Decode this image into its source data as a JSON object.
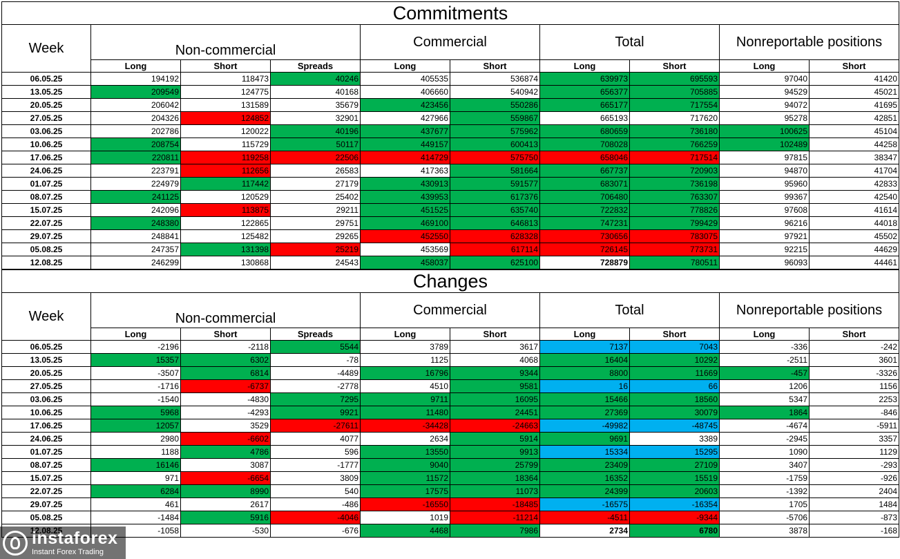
{
  "sections": [
    {
      "title": "Commitments",
      "week_label": "Week",
      "groups": [
        "Non-commercial",
        "Commercial",
        "Total",
        "Nonreportable positions"
      ],
      "subheaders": [
        "Long",
        "Short",
        "Spreads",
        "Long",
        "Short",
        "Long",
        "Short",
        "Long",
        "Short"
      ],
      "rows": [
        {
          "week": "06.05.25",
          "values": [
            "194192",
            "118473",
            "40246",
            "405535",
            "536874",
            "639973",
            "695593",
            "97040",
            "41420"
          ]
        },
        {
          "week": "13.05.25",
          "values": [
            "209549",
            "124775",
            "40168",
            "406660",
            "540942",
            "656377",
            "705885",
            "94529",
            "45021"
          ]
        },
        {
          "week": "20.05.25",
          "values": [
            "206042",
            "131589",
            "35679",
            "423456",
            "550286",
            "665177",
            "717554",
            "94072",
            "41695"
          ]
        },
        {
          "week": "27.05.25",
          "values": [
            "204326",
            "124852",
            "32901",
            "427966",
            "559867",
            "665193",
            "717620",
            "95278",
            "42851"
          ]
        },
        {
          "week": "03.06.25",
          "values": [
            "202786",
            "120022",
            "40196",
            "437677",
            "575962",
            "680659",
            "736180",
            "100625",
            "45104"
          ]
        },
        {
          "week": "10.06.25",
          "values": [
            "208754",
            "115729",
            "50117",
            "449157",
            "600413",
            "708028",
            "766259",
            "102489",
            "44258"
          ]
        },
        {
          "week": "17.06.25",
          "values": [
            "220811",
            "119258",
            "22506",
            "414729",
            "575750",
            "658046",
            "717514",
            "97815",
            "38347"
          ]
        },
        {
          "week": "24.06.25",
          "values": [
            "223791",
            "112656",
            "26583",
            "417363",
            "581664",
            "667737",
            "720903",
            "94870",
            "41704"
          ]
        },
        {
          "week": "01.07.25",
          "values": [
            "224979",
            "117442",
            "27179",
            "430913",
            "591577",
            "683071",
            "736198",
            "95960",
            "42833"
          ]
        },
        {
          "week": "08.07.25",
          "values": [
            "241125",
            "120529",
            "25402",
            "439953",
            "617376",
            "706480",
            "763307",
            "99367",
            "42540"
          ]
        },
        {
          "week": "15.07.25",
          "values": [
            "242096",
            "113875",
            "29211",
            "451525",
            "635740",
            "722832",
            "778826",
            "97608",
            "41614"
          ]
        },
        {
          "week": "22.07.25",
          "values": [
            "248380",
            "122865",
            "29751",
            "469100",
            "646813",
            "747231",
            "799429",
            "96216",
            "44018"
          ]
        },
        {
          "week": "29.07.25",
          "values": [
            "248841",
            "125482",
            "29265",
            "452550",
            "628328",
            "730656",
            "783075",
            "97921",
            "45502"
          ]
        },
        {
          "week": "05.08.25",
          "values": [
            "247357",
            "131398",
            "25219",
            "453569",
            "617114",
            "726145",
            "773731",
            "92215",
            "44629"
          ]
        },
        {
          "week": "12.08.25",
          "values": [
            "246299",
            "130868",
            "24543",
            "458037",
            "625100",
            "728879",
            "780511",
            "96093",
            "44461"
          ]
        }
      ],
      "colors": [
        "wwgwwggww",
        "gwwwwggww",
        "wwwggggww",
        "wrwwgwwww",
        "wwggggggww",
        "gwggggggww",
        "grrrrrrww",
        "wrwwgggww",
        "wgwggggww",
        "gwwggggww",
        "wrwggggww",
        "gwwggggww",
        "wwwrrrrww",
        "wgrwrrrww",
        "wwwggwgww"
      ],
      "bold_cells": [
        [
          14,
          5
        ]
      ]
    },
    {
      "title": "Changes",
      "week_label": "Week",
      "groups": [
        "Non-commercial",
        "Commercial",
        "Total",
        "Nonreportable positions"
      ],
      "subheaders": [
        "Long",
        "Short",
        "Spreads",
        "Long",
        "Short",
        "Long",
        "Short",
        "Long",
        "Short"
      ],
      "rows": [
        {
          "week": "06.05.25",
          "values": [
            "-2196",
            "-2118",
            "5544",
            "3789",
            "3617",
            "7137",
            "7043",
            "-336",
            "-242"
          ]
        },
        {
          "week": "13.05.25",
          "values": [
            "15357",
            "6302",
            "-78",
            "1125",
            "4068",
            "16404",
            "10292",
            "-2511",
            "3601"
          ]
        },
        {
          "week": "20.05.25",
          "values": [
            "-3507",
            "6814",
            "-4489",
            "16796",
            "9344",
            "8800",
            "11669",
            "-457",
            "-3326"
          ]
        },
        {
          "week": "27.05.25",
          "values": [
            "-1716",
            "-6737",
            "-2778",
            "4510",
            "9581",
            "16",
            "66",
            "1206",
            "1156"
          ]
        },
        {
          "week": "03.06.25",
          "values": [
            "-1540",
            "-4830",
            "7295",
            "9711",
            "16095",
            "15466",
            "18560",
            "5347",
            "2253"
          ]
        },
        {
          "week": "10.06.25",
          "values": [
            "5968",
            "-4293",
            "9921",
            "11480",
            "24451",
            "27369",
            "30079",
            "1864",
            "-846"
          ]
        },
        {
          "week": "17.06.25",
          "values": [
            "12057",
            "3529",
            "-27611",
            "-34428",
            "-24663",
            "-49982",
            "-48745",
            "-4674",
            "-5911"
          ]
        },
        {
          "week": "24.06.25",
          "values": [
            "2980",
            "-6602",
            "4077",
            "2634",
            "5914",
            "9691",
            "3389",
            "-2945",
            "3357"
          ]
        },
        {
          "week": "01.07.25",
          "values": [
            "1188",
            "4786",
            "596",
            "13550",
            "9913",
            "15334",
            "15295",
            "1090",
            "1129"
          ]
        },
        {
          "week": "08.07.25",
          "values": [
            "16146",
            "3087",
            "-1777",
            "9040",
            "25799",
            "23409",
            "27109",
            "3407",
            "-293"
          ]
        },
        {
          "week": "15.07.25",
          "values": [
            "971",
            "-6654",
            "3809",
            "11572",
            "18364",
            "16352",
            "15519",
            "-1759",
            "-926"
          ]
        },
        {
          "week": "22.07.25",
          "values": [
            "6284",
            "8990",
            "540",
            "17575",
            "11073",
            "24399",
            "20603",
            "-1392",
            "2404"
          ]
        },
        {
          "week": "29.07.25",
          "values": [
            "461",
            "2617",
            "-486",
            "-16550",
            "-18485",
            "-16575",
            "-16354",
            "1705",
            "1484"
          ]
        },
        {
          "week": "05.08.25",
          "values": [
            "-1484",
            "5916",
            "-4046",
            "1019",
            "-11214",
            "-4511",
            "-9344",
            "-5706",
            "-873"
          ]
        },
        {
          "week": "12.08.25",
          "values": [
            "-1058",
            "-530",
            "-676",
            "4468",
            "7986",
            "2734",
            "6780",
            "3878",
            "-168"
          ]
        }
      ],
      "colors": [
        "wwgwwbbww",
        "ggwwwggww",
        "wgwgggggww",
        "wrwwgbbww",
        "wwgggggww",
        "gwggggggww",
        "gwrrrbbww",
        "wrwwggwww",
        "wgwggbbww",
        "gwwggggww",
        "wrwggggww",
        "ggwggggww",
        "wwwrrbbww",
        "wgrwrrrww",
        "wwwggwgww"
      ],
      "bold_cells": [
        [
          14,
          5
        ],
        [
          14,
          6
        ]
      ]
    }
  ],
  "watermark": {
    "brand": "instaforex",
    "tagline": "Instant Forex Trading"
  }
}
